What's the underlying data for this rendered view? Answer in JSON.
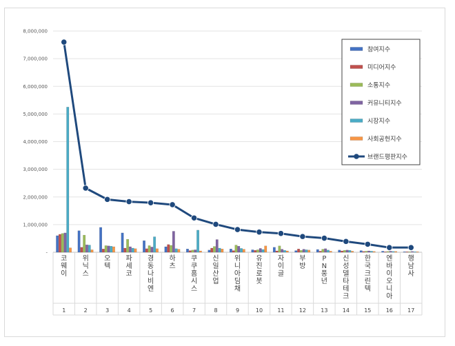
{
  "chart_data": {
    "type": "bar",
    "title": "",
    "xlabel": "",
    "ylabel": "",
    "ylim": [
      0,
      8000000
    ],
    "yticks": [
      0,
      1000000,
      2000000,
      3000000,
      4000000,
      5000000,
      6000000,
      7000000,
      8000000
    ],
    "ytick_labels": [
      "-",
      "1,000,000",
      "2,000,000",
      "3,000,000",
      "4,000,000",
      "5,000,000",
      "6,000,000",
      "7,000,000",
      "8,000,000"
    ],
    "index_labels": [
      "1",
      "2",
      "3",
      "4",
      "5",
      "6",
      "7",
      "8",
      "9",
      "10",
      "11",
      "12",
      "13",
      "14",
      "15",
      "16",
      "17"
    ],
    "categories": [
      "코웨이",
      "위닉스",
      "오텍",
      "파세코",
      "경동나비엔",
      "하츠",
      "쿠쿠홈시스",
      "신일산업",
      "위니아딤채",
      "유진로봇",
      "자이글",
      "부방",
      "PN풍년",
      "신성델타테크",
      "한국크린텍",
      "엔바이오니아",
      "행남사"
    ],
    "legend_position": "top-right",
    "series": [
      {
        "name": "참여지수",
        "color": "#4472C4",
        "kind": "bar",
        "values": [
          600000,
          780000,
          900000,
          700000,
          420000,
          200000,
          120000,
          80000,
          120000,
          90000,
          180000,
          60000,
          100000,
          80000,
          60000,
          40000,
          20000
        ]
      },
      {
        "name": "미디어지수",
        "color": "#C0504D",
        "kind": "bar",
        "values": [
          650000,
          180000,
          120000,
          150000,
          130000,
          280000,
          60000,
          150000,
          60000,
          70000,
          50000,
          120000,
          40000,
          50000,
          30000,
          20000,
          20000
        ]
      },
      {
        "name": "소통지수",
        "color": "#9BBB59",
        "kind": "bar",
        "values": [
          680000,
          620000,
          240000,
          470000,
          240000,
          250000,
          80000,
          210000,
          260000,
          90000,
          230000,
          70000,
          110000,
          70000,
          40000,
          30000,
          20000
        ]
      },
      {
        "name": "커뮤니티지수",
        "color": "#8064A2",
        "kind": "bar",
        "values": [
          700000,
          270000,
          230000,
          200000,
          190000,
          760000,
          90000,
          460000,
          220000,
          140000,
          110000,
          110000,
          130000,
          80000,
          50000,
          40000,
          30000
        ]
      },
      {
        "name": "시장지수",
        "color": "#4BACC6",
        "kind": "bar",
        "values": [
          5250000,
          260000,
          220000,
          150000,
          560000,
          130000,
          800000,
          150000,
          140000,
          100000,
          70000,
          90000,
          80000,
          70000,
          40000,
          30000,
          20000
        ]
      },
      {
        "name": "사회공헌지수",
        "color": "#F79646",
        "kind": "bar",
        "values": [
          160000,
          90000,
          200000,
          130000,
          130000,
          110000,
          50000,
          120000,
          110000,
          230000,
          50000,
          80000,
          40000,
          40000,
          30000,
          30000,
          20000
        ]
      },
      {
        "name": "브랜드평판지수",
        "color": "#1F497D",
        "kind": "line",
        "values": [
          7600000,
          2320000,
          1910000,
          1830000,
          1790000,
          1720000,
          1240000,
          1010000,
          820000,
          730000,
          680000,
          570000,
          510000,
          390000,
          290000,
          170000,
          170000
        ]
      }
    ]
  }
}
